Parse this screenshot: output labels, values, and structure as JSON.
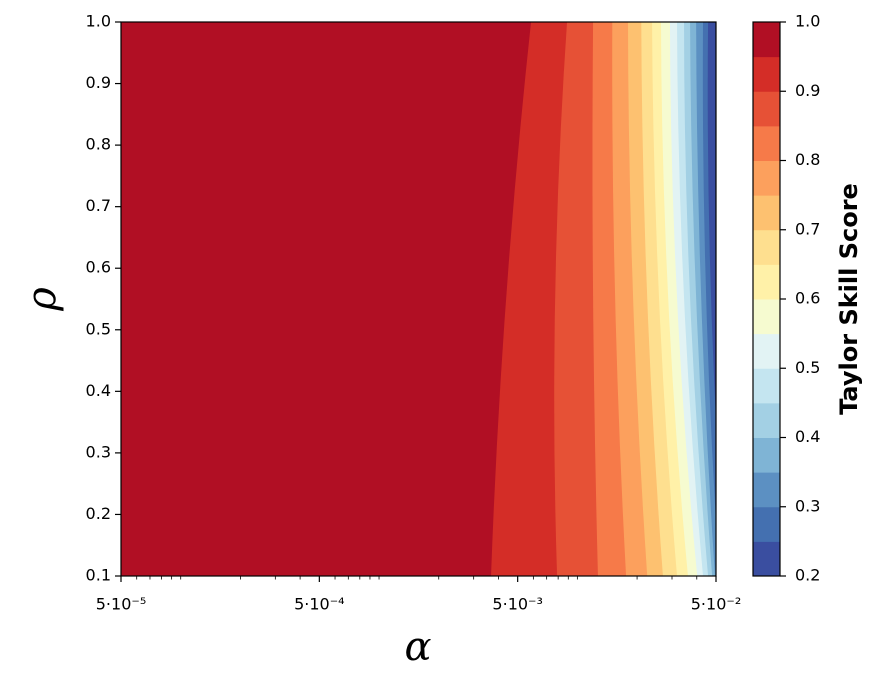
{
  "chart_data": {
    "type": "contourf",
    "xlabel": "α",
    "ylabel": "ρ",
    "colorbar_label": "Taylor Skill Score",
    "xscale": "log",
    "xlim": [
      5e-05,
      0.05
    ],
    "ylim": [
      0.1,
      1.0
    ],
    "xticks": [
      {
        "value": 5e-05,
        "label": "5·10⁻⁵"
      },
      {
        "value": 0.0005,
        "label": "5·10⁻⁴"
      },
      {
        "value": 0.005,
        "label": "5·10⁻³"
      },
      {
        "value": 0.05,
        "label": "5·10⁻²"
      }
    ],
    "xminor_ticks": [
      6e-05,
      7e-05,
      8e-05,
      9e-05,
      0.0001,
      0.0002,
      0.0003,
      0.0004,
      0.0006,
      0.0007,
      0.0008,
      0.0009,
      0.001,
      0.002,
      0.003,
      0.004,
      0.006,
      0.007,
      0.008,
      0.009,
      0.01,
      0.02,
      0.03,
      0.04
    ],
    "yticks": [
      0.1,
      0.2,
      0.3,
      0.4,
      0.5,
      0.6,
      0.7,
      0.8,
      0.9,
      {
        "value": 1.0,
        "label": "1.0"
      }
    ],
    "levels": [
      0.2,
      0.25,
      0.3,
      0.35,
      0.4,
      0.45,
      0.5,
      0.55,
      0.6,
      0.65,
      0.7,
      0.75,
      0.8,
      0.85,
      0.9,
      0.95,
      1.0
    ],
    "colors": [
      "#3a4ea0",
      "#4470b0",
      "#5c90c2",
      "#7fb4d5",
      "#a3d0e4",
      "#c4e5f0",
      "#e2f3f4",
      "#f6fbd0",
      "#fff1a8",
      "#fedf8f",
      "#fdc170",
      "#fca05d",
      "#f67a49",
      "#e65136",
      "#d42d27",
      "#b10f24"
    ],
    "cbar_ticks": [
      0.2,
      0.3,
      0.4,
      0.5,
      0.6,
      0.7,
      0.8,
      0.9,
      {
        "value": 1.0,
        "label": "1.0"
      }
    ],
    "rho": [
      0.1,
      0.55,
      1.0
    ],
    "boundaries": [
      {
        "level": 0.95,
        "alpha": [
          0.00367,
          0.00437,
          0.00584
        ]
      },
      {
        "level": 0.9,
        "alpha": [
          0.0079,
          0.00772,
          0.00887
        ]
      },
      {
        "level": 0.85,
        "alpha": [
          0.0127,
          0.012,
          0.012
        ]
      },
      {
        "level": 0.8,
        "alpha": [
          0.0176,
          0.0155,
          0.015
        ]
      },
      {
        "level": 0.75,
        "alpha": [
          0.0225,
          0.0191,
          0.018
        ]
      },
      {
        "level": 0.7,
        "alpha": [
          0.027,
          0.0225,
          0.021
        ]
      },
      {
        "level": 0.65,
        "alpha": [
          0.0318,
          0.0258,
          0.0238
        ]
      },
      {
        "level": 0.6,
        "alpha": [
          0.0361,
          0.0287,
          0.0264
        ]
      },
      {
        "level": 0.55,
        "alpha": [
          0.0402,
          0.0318,
          0.0293
        ]
      },
      {
        "level": 0.5,
        "alpha": [
          0.043,
          0.0345,
          0.0318
        ]
      },
      {
        "level": 0.45,
        "alpha": [
          0.0456,
          0.037,
          0.0345
        ]
      },
      {
        "level": 0.4,
        "alpha": [
          0.0478,
          0.0397,
          0.037
        ]
      },
      {
        "level": 0.35,
        "alpha": [
          0.0494,
          0.0421,
          0.0397
        ]
      },
      {
        "level": 0.3,
        "alpha": [
          0.052,
          0.0446,
          0.043
        ]
      },
      {
        "level": 0.25,
        "alpha": [
          0.056,
          0.0472,
          0.0456
        ]
      }
    ]
  }
}
